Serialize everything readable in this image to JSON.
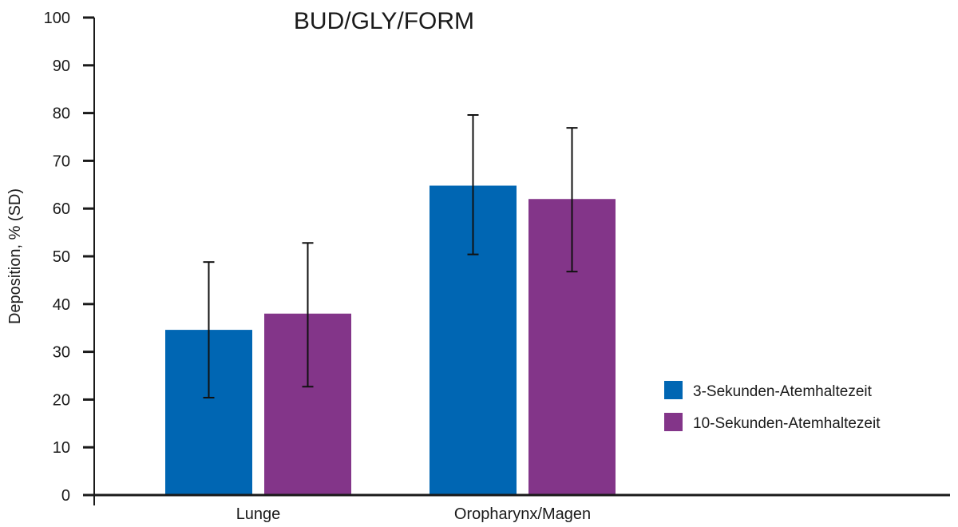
{
  "chart_data": {
    "type": "bar",
    "title": "BUD/GLY/FORM",
    "xlabel": "",
    "ylabel": "Deposition, % (SD)",
    "ylim": [
      0,
      100
    ],
    "yticks": [
      0,
      10,
      20,
      30,
      40,
      50,
      60,
      70,
      80,
      90,
      100
    ],
    "categories": [
      "Lunge",
      "Oropharynx/Magen"
    ],
    "series": [
      {
        "name": "3-Sekunden-Atemhaltezeit",
        "color": "#0066b3",
        "values": [
          34.6,
          64.8
        ],
        "sd_low": [
          20.4,
          50.4
        ],
        "sd_high": [
          48.8,
          79.6
        ]
      },
      {
        "name": "10-Sekunden-Atemhaltezeit",
        "color": "#833589",
        "values": [
          38.0,
          62.0
        ],
        "sd_low": [
          22.7,
          46.8
        ],
        "sd_high": [
          52.8,
          76.9
        ]
      }
    ],
    "legend_position": "right",
    "grid": false
  }
}
